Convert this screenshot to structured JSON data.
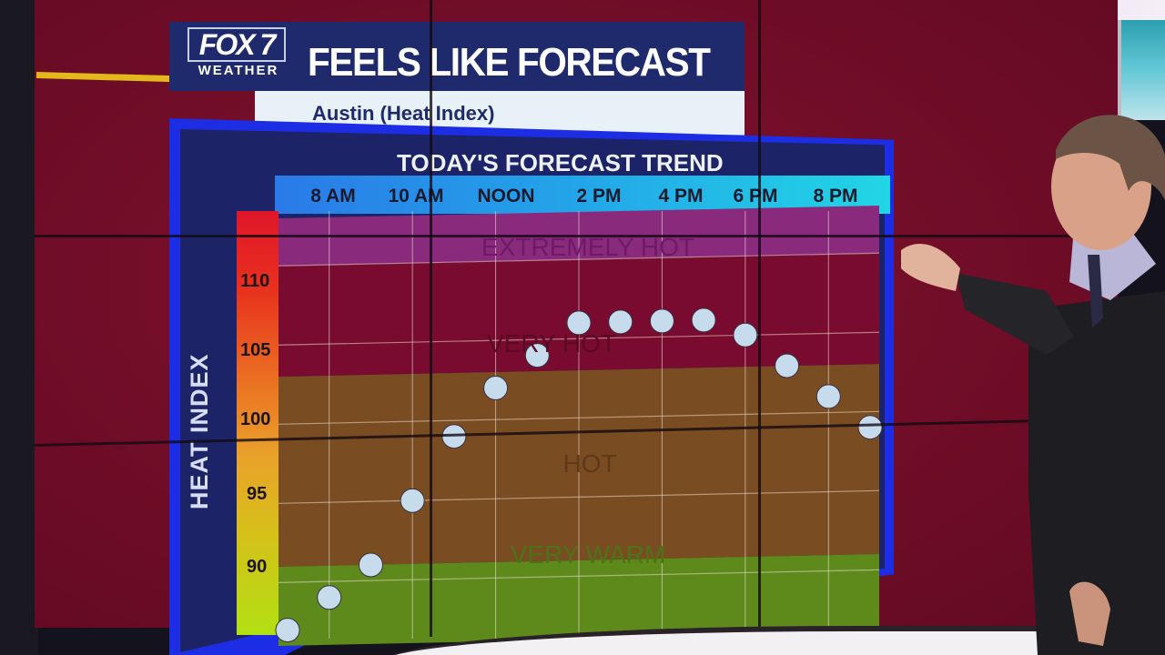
{
  "branding": {
    "station_logo_line1": "FOX 7",
    "station_logo_line2": "WEATHER"
  },
  "header": {
    "title": "FEELS LIKE FORECAST",
    "subtitle": "Austin (Heat Index)"
  },
  "chart_header": {
    "title": "TODAY'S FORECAST TREND"
  },
  "colors": {
    "wall": "#7c0f2c",
    "frame_blue": "#1d2de4",
    "navy": "#1f2a6c",
    "zone_extremely_hot": "#8a2a7c",
    "zone_very_hot": "#7a0b30",
    "zone_hot": "#7a4c22",
    "zone_very_warm": "#5e8a1c",
    "dot": "#c6dcec"
  },
  "chart_data": {
    "type": "scatter",
    "title": "TODAY'S FORECAST TREND",
    "subtitle": "Austin (Heat Index)",
    "xlabel": "",
    "ylabel": "HEAT INDEX",
    "x_tick_labels": [
      "8 AM",
      "10 AM",
      "NOON",
      "2 PM",
      "4 PM",
      "6 PM",
      "8 PM"
    ],
    "x": [
      "7 AM",
      "8 AM",
      "9 AM",
      "10 AM",
      "11 AM",
      "NOON",
      "1 PM",
      "2 PM",
      "3 PM",
      "4 PM",
      "5 PM",
      "6 PM",
      "7 PM",
      "8 PM",
      "9 PM"
    ],
    "y_ticks": [
      90,
      95,
      100,
      105,
      110
    ],
    "ylim": [
      86,
      113
    ],
    "series": [
      {
        "name": "Heat Index",
        "values": [
          87,
          89,
          91,
          95,
          99,
          102,
          104,
          106,
          106,
          106,
          106,
          105,
          103,
          101,
          99
        ]
      }
    ],
    "zones": [
      {
        "label": "EXTREMELY HOT",
        "from": 110,
        "to": 113,
        "color": "#8a2a7c"
      },
      {
        "label": "VERY HOT",
        "from": 103,
        "to": 110,
        "color": "#7a0b30"
      },
      {
        "label": "HOT",
        "from": 91,
        "to": 103,
        "color": "#7a4c22"
      },
      {
        "label": "VERY WARM",
        "from": 86,
        "to": 91,
        "color": "#5e8a1c"
      }
    ],
    "grid": true,
    "legend": "none"
  },
  "y_axis": {
    "title": "HEAT INDEX",
    "ticks": [
      "110",
      "105",
      "100",
      "95",
      "90"
    ]
  },
  "time_axis": {
    "labels": [
      "8 AM",
      "10 AM",
      "NOON",
      "2 PM",
      "4 PM",
      "6 PM",
      "8 PM"
    ]
  },
  "zone_labels": {
    "extremely_hot": "EXTREMELY HOT",
    "very_hot": "VERY HOT",
    "hot": "HOT",
    "very_warm": "VERY WARM"
  }
}
